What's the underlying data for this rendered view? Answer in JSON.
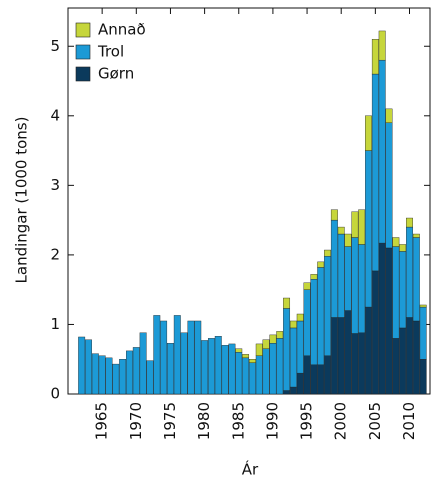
{
  "chart_data": {
    "type": "stacked-bar",
    "x": [
      1962,
      1963,
      1964,
      1965,
      1966,
      1967,
      1968,
      1969,
      1970,
      1971,
      1972,
      1973,
      1974,
      1975,
      1976,
      1977,
      1978,
      1979,
      1980,
      1981,
      1982,
      1983,
      1984,
      1985,
      1986,
      1987,
      1988,
      1989,
      1990,
      1991,
      1992,
      1993,
      1994,
      1995,
      1996,
      1997,
      1998,
      1999,
      2000,
      2001,
      2002,
      2003,
      2004,
      2005,
      2006,
      2007,
      2008,
      2009,
      2010,
      2011,
      2012
    ],
    "series": [
      {
        "name": "Gørn",
        "color": "#0b3a5c",
        "values": [
          0,
          0,
          0,
          0,
          0,
          0,
          0,
          0,
          0,
          0,
          0,
          0,
          0,
          0,
          0,
          0,
          0,
          0,
          0,
          0,
          0,
          0,
          0,
          0,
          0,
          0,
          0,
          0,
          0,
          0,
          0.05,
          0.1,
          0.3,
          0.55,
          0.42,
          0.42,
          0.55,
          1.1,
          1.1,
          1.2,
          0.87,
          0.88,
          1.25,
          1.77,
          2.17,
          2.1,
          0.8,
          0.95,
          1.1,
          1.05,
          0.5
        ]
      },
      {
        "name": "Trol",
        "color": "#1c9ad6",
        "values": [
          0.82,
          0.78,
          0.58,
          0.55,
          0.52,
          0.43,
          0.5,
          0.62,
          0.67,
          0.88,
          0.48,
          1.13,
          1.05,
          0.73,
          1.13,
          0.88,
          1.05,
          1.05,
          0.77,
          0.8,
          0.83,
          0.7,
          0.72,
          0.6,
          0.52,
          0.45,
          0.55,
          0.65,
          0.73,
          0.8,
          1.18,
          0.85,
          0.75,
          0.95,
          1.23,
          1.4,
          1.43,
          1.4,
          1.2,
          0.92,
          1.38,
          1.27,
          2.25,
          2.83,
          2.63,
          1.8,
          1.32,
          1.1,
          1.3,
          1.2,
          0.75
        ]
      },
      {
        "name": "Annað",
        "color": "#c6d63b",
        "values": [
          0,
          0,
          0,
          0,
          0,
          0,
          0,
          0,
          0,
          0,
          0,
          0,
          0,
          0,
          0,
          0,
          0,
          0,
          0,
          0,
          0,
          0,
          0,
          0.05,
          0.05,
          0.05,
          0.17,
          0.13,
          0.12,
          0.1,
          0.15,
          0.1,
          0.1,
          0.1,
          0.07,
          0.08,
          0.09,
          0.15,
          0.1,
          0.18,
          0.37,
          0.5,
          0.5,
          0.5,
          0.42,
          0.2,
          0.13,
          0.1,
          0.13,
          0.05,
          0.03
        ]
      }
    ],
    "xlim": [
      1960,
      2013
    ],
    "xticks": [
      1965,
      1970,
      1975,
      1980,
      1985,
      1990,
      1995,
      2000,
      2005,
      2010
    ],
    "ylim": [
      0,
      5.55
    ],
    "yticks": [
      0,
      1,
      2,
      3,
      4,
      5
    ],
    "x_label": "Ár",
    "y_label": "Landingar (1000 tons)",
    "legend": "upper-left"
  }
}
